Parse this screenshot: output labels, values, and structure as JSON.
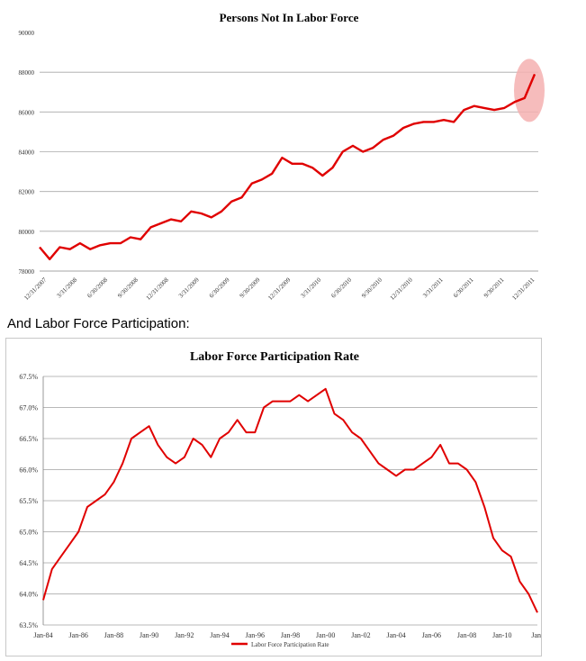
{
  "caption": "And Labor Force Participation:",
  "chart_data": [
    {
      "type": "line",
      "title": "Persons Not In Labor Force",
      "xlabel": "",
      "ylabel": "",
      "ylim": [
        78000,
        90000
      ],
      "yticks": [
        "90000",
        "88000",
        "86000",
        "84000",
        "82000",
        "80000",
        "78000"
      ],
      "ytick_values": [
        90000,
        88000,
        86000,
        84000,
        82000,
        80000,
        78000
      ],
      "grid": true,
      "legend": "none",
      "line_color": "#e00000",
      "highlight_color": "#f4b0b0",
      "xticks": [
        "12/31/2007",
        "3/31/2008",
        "6/30/2008",
        "9/30/2008",
        "12/31/2008",
        "3/31/2009",
        "6/30/2009",
        "9/30/2009",
        "12/31/2009",
        "3/31/2010",
        "6/30/2010",
        "9/30/2010",
        "12/31/2010",
        "3/31/2011",
        "6/30/2011",
        "9/30/2011",
        "12/31/2011"
      ],
      "x": [
        "Dec-07",
        "Jan-08",
        "Feb-08",
        "Mar-08",
        "Apr-08",
        "May-08",
        "Jun-08",
        "Jul-08",
        "Aug-08",
        "Sep-08",
        "Oct-08",
        "Nov-08",
        "Dec-08",
        "Jan-09",
        "Feb-09",
        "Mar-09",
        "Apr-09",
        "May-09",
        "Jun-09",
        "Jul-09",
        "Aug-09",
        "Sep-09",
        "Oct-09",
        "Nov-09",
        "Dec-09",
        "Jan-10",
        "Feb-10",
        "Mar-10",
        "Apr-10",
        "May-10",
        "Jun-10",
        "Jul-10",
        "Aug-10",
        "Sep-10",
        "Oct-10",
        "Nov-10",
        "Dec-10",
        "Jan-11",
        "Feb-11",
        "Mar-11",
        "Apr-11",
        "May-11",
        "Jun-11",
        "Jul-11",
        "Aug-11",
        "Sep-11",
        "Oct-11",
        "Nov-11",
        "Dec-11",
        "Jan-12"
      ],
      "series": [
        {
          "values": [
            79200,
            78600,
            79200,
            79100,
            79400,
            79100,
            79300,
            79400,
            79400,
            79700,
            79600,
            80200,
            80400,
            80600,
            80500,
            81000,
            80900,
            80700,
            81000,
            81500,
            81700,
            82400,
            82600,
            82900,
            83700,
            83400,
            83400,
            83200,
            82800,
            83200,
            84000,
            84300,
            84000,
            84200,
            84600,
            84800,
            85200,
            85400,
            85500,
            85500,
            85600,
            85500,
            86100,
            86300,
            86200,
            86100,
            86200,
            86500,
            86700,
            87900
          ]
        }
      ]
    },
    {
      "type": "line",
      "title": "Labor Force Participation Rate",
      "xlabel": "",
      "ylabel": "",
      "ylim": [
        63.5,
        67.5
      ],
      "yticks": [
        "67.5%",
        "67.0%",
        "66.5%",
        "66.0%",
        "65.5%",
        "65.0%",
        "64.5%",
        "64.0%",
        "63.5%"
      ],
      "ytick_values": [
        67.5,
        67.0,
        66.5,
        66.0,
        65.5,
        65.0,
        64.5,
        64.0,
        63.5
      ],
      "grid": true,
      "legend": "bottom",
      "line_color": "#e00000",
      "xticks": [
        "Jan-84",
        "Jan-86",
        "Jan-88",
        "Jan-90",
        "Jan-92",
        "Jan-94",
        "Jan-96",
        "Jan-98",
        "Jan-00",
        "Jan-02",
        "Jan-04",
        "Jan-06",
        "Jan-08",
        "Jan-10",
        "Jan-"
      ],
      "x": [
        1984.0,
        1984.5,
        1985.0,
        1985.5,
        1986.0,
        1986.5,
        1987.0,
        1987.5,
        1988.0,
        1988.5,
        1989.0,
        1989.5,
        1990.0,
        1990.5,
        1991.0,
        1991.5,
        1992.0,
        1992.5,
        1993.0,
        1993.5,
        1994.0,
        1994.5,
        1995.0,
        1995.5,
        1996.0,
        1996.5,
        1997.0,
        1997.5,
        1998.0,
        1998.5,
        1999.0,
        1999.5,
        2000.0,
        2000.5,
        2001.0,
        2001.5,
        2002.0,
        2002.5,
        2003.0,
        2003.5,
        2004.0,
        2004.5,
        2005.0,
        2005.5,
        2006.0,
        2006.5,
        2007.0,
        2007.5,
        2008.0,
        2008.5,
        2009.0,
        2009.5,
        2010.0,
        2010.5,
        2011.0,
        2011.5,
        2012.0
      ],
      "series": [
        {
          "name": "Labor Force Participation Rate",
          "values": [
            63.9,
            64.4,
            64.6,
            64.8,
            65.0,
            65.4,
            65.5,
            65.6,
            65.8,
            66.1,
            66.5,
            66.6,
            66.7,
            66.4,
            66.2,
            66.1,
            66.2,
            66.5,
            66.4,
            66.2,
            66.5,
            66.6,
            66.8,
            66.6,
            66.6,
            67.0,
            67.1,
            67.1,
            67.1,
            67.2,
            67.1,
            67.2,
            67.3,
            66.9,
            66.8,
            66.6,
            66.5,
            66.3,
            66.1,
            66.0,
            65.9,
            66.0,
            66.0,
            66.1,
            66.2,
            66.4,
            66.1,
            66.1,
            66.0,
            65.8,
            65.4,
            64.9,
            64.7,
            64.6,
            64.2,
            64.0,
            63.7
          ]
        }
      ]
    }
  ]
}
